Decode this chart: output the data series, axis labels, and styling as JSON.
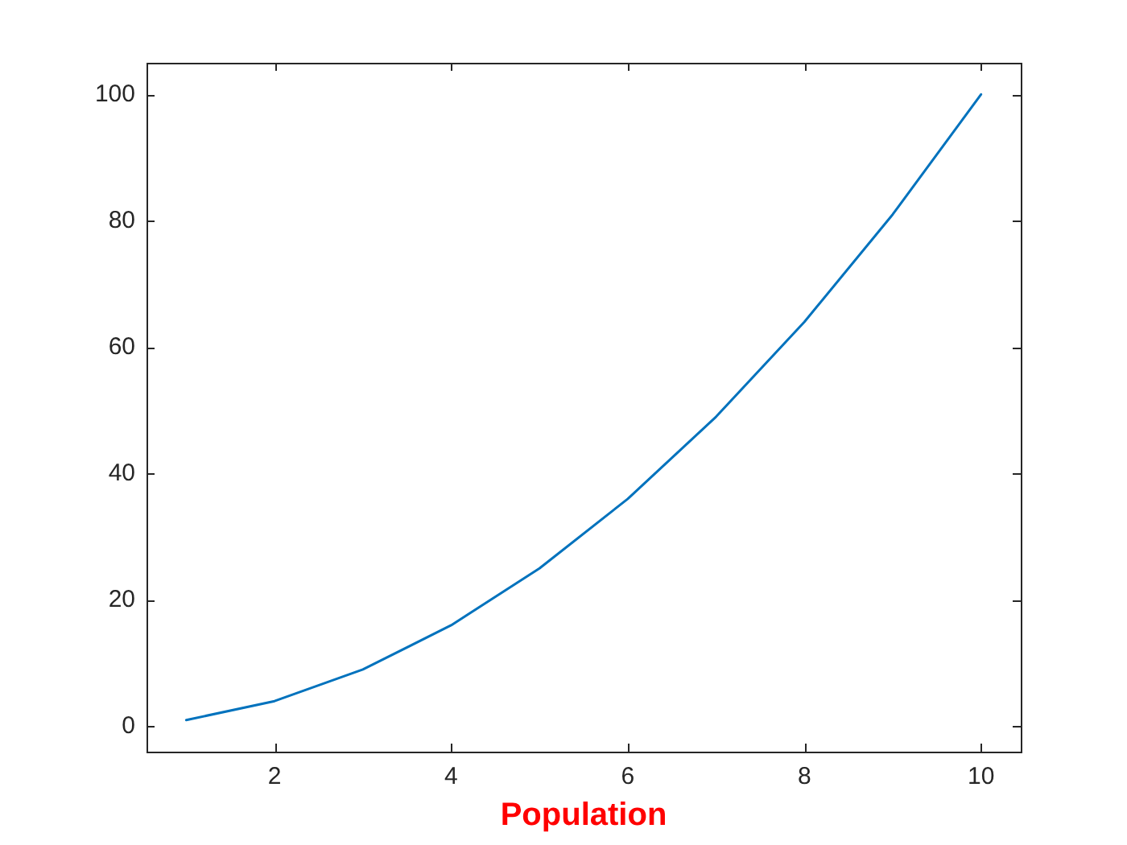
{
  "chart_data": {
    "type": "line",
    "xlabel": "Population",
    "x": [
      1,
      2,
      3,
      4,
      5,
      6,
      7,
      8,
      9,
      10
    ],
    "series": [
      {
        "color": "#0072bd",
        "values": [
          1,
          4,
          9,
          16,
          25,
          36,
          49,
          64,
          81,
          100
        ]
      }
    ],
    "xlim": [
      0.55,
      10.45
    ],
    "ylim": [
      -4,
      105
    ],
    "xticks": [
      2,
      4,
      6,
      8,
      10
    ],
    "yticks": [
      0,
      20,
      40,
      60,
      80,
      100
    ],
    "grid": false,
    "legend": false
  }
}
